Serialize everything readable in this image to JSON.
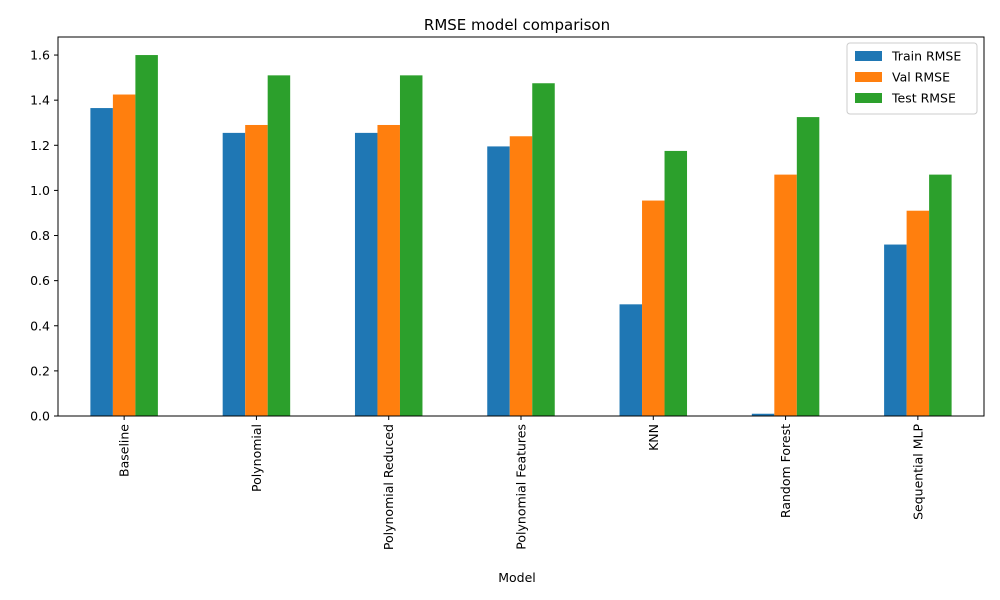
{
  "chart_data": {
    "type": "bar",
    "title": "RMSE model comparison",
    "xlabel": "Model",
    "ylabel": "",
    "categories": [
      "Baseline",
      "Polynomial",
      "Polynomial Reduced",
      "Polynomial Features",
      "KNN",
      "Random Forest",
      "Sequential MLP"
    ],
    "series": [
      {
        "name": "Train RMSE",
        "color": "#1f77b4",
        "values": [
          1.365,
          1.255,
          1.255,
          1.195,
          0.495,
          0.01,
          0.76
        ]
      },
      {
        "name": "Val RMSE",
        "color": "#ff7f0e",
        "values": [
          1.425,
          1.29,
          1.29,
          1.24,
          0.955,
          1.07,
          0.91
        ]
      },
      {
        "name": "Test RMSE",
        "color": "#2ca02c",
        "values": [
          1.6,
          1.51,
          1.51,
          1.475,
          1.175,
          1.325,
          1.07
        ]
      }
    ],
    "ylim": [
      0,
      1.68
    ],
    "yticks": [
      "0.0",
      "0.2",
      "0.4",
      "0.6",
      "0.8",
      "1.0",
      "1.2",
      "1.4",
      "1.6"
    ],
    "legend_position": "top-right",
    "grid": false
  }
}
